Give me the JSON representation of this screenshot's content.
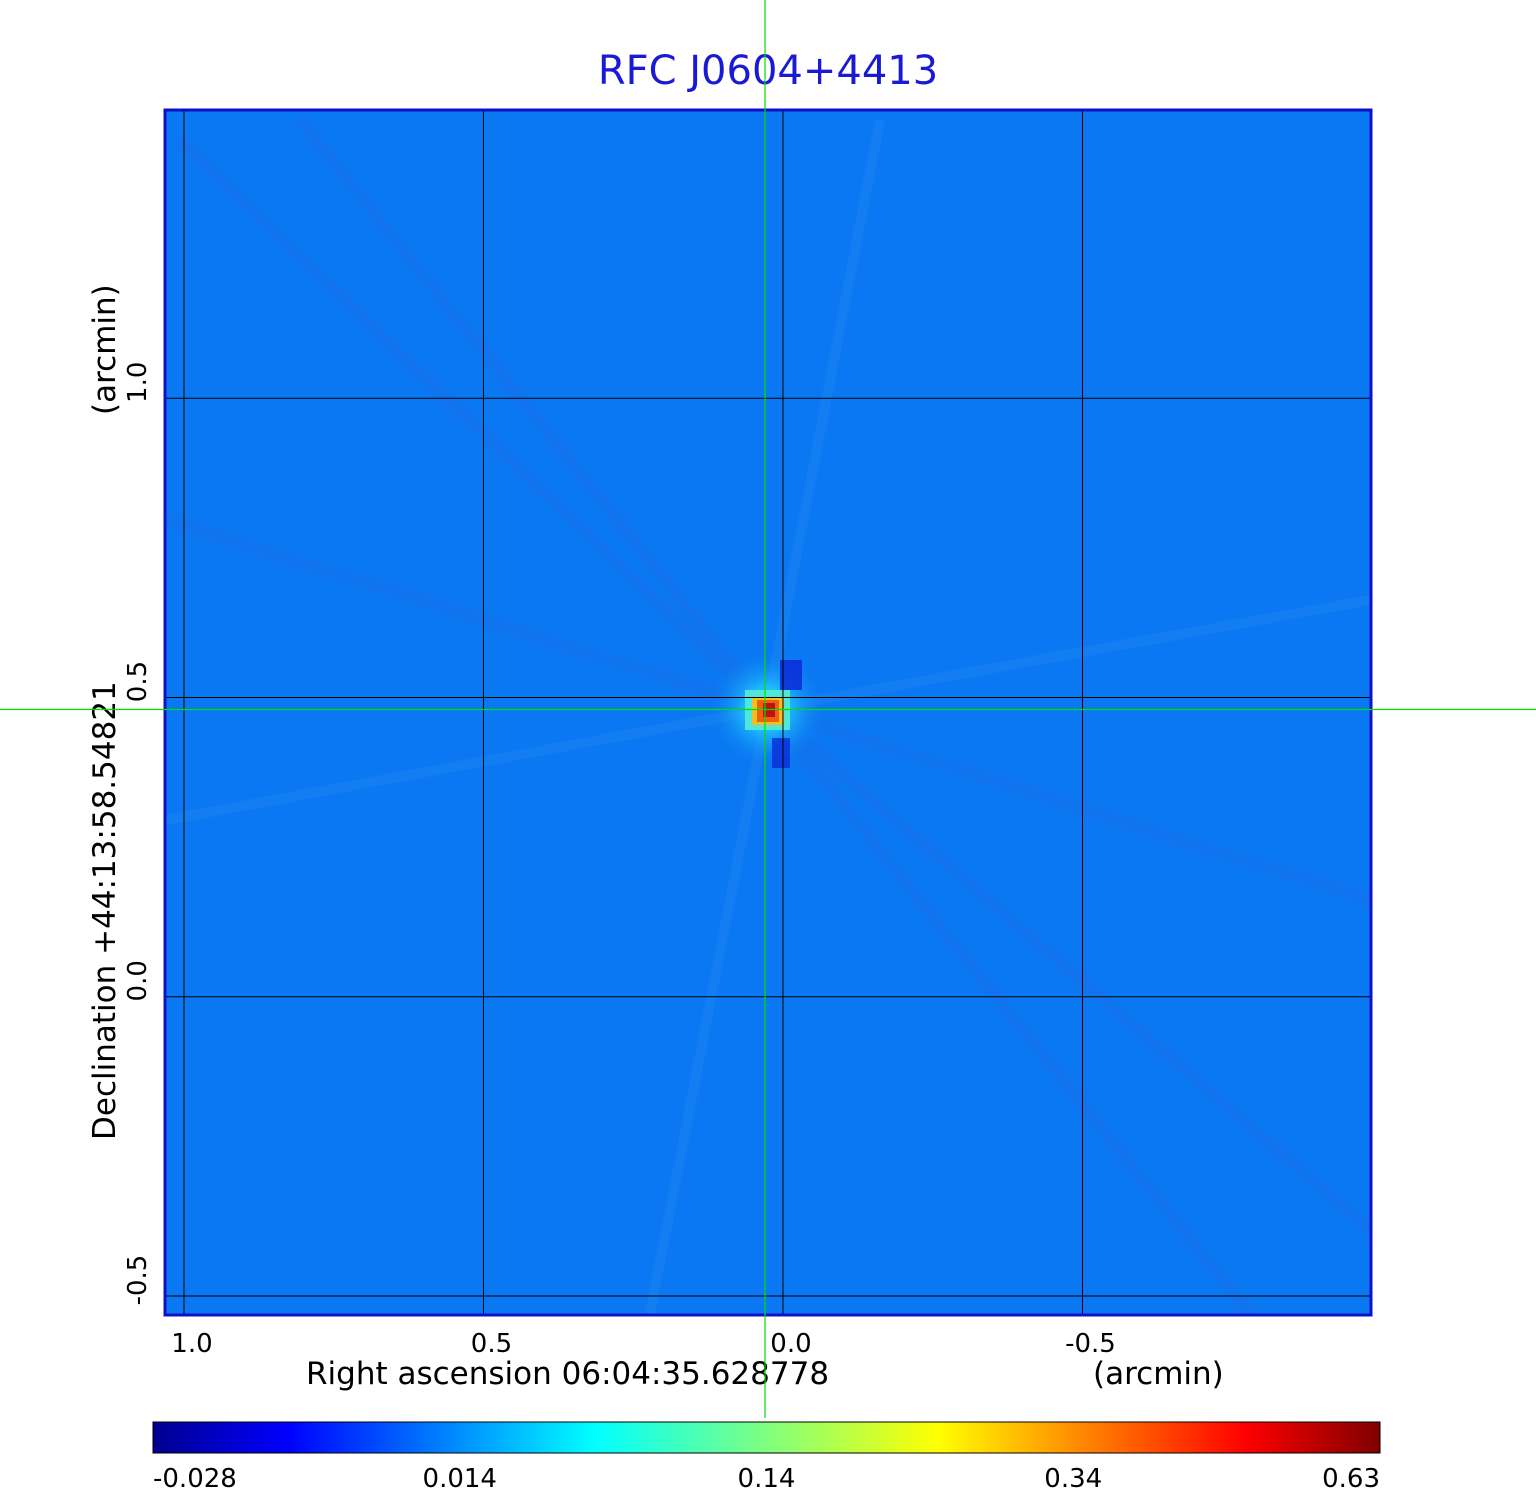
{
  "chart_data": {
    "type": "heatmap",
    "title": "RFC J0604+4413",
    "xlabel": "Right ascension  06:04:35.628778",
    "xunit": "(arcmin)",
    "ylabel": "Declination  +44:13:58.54821",
    "yunit": "(arcmin)",
    "x_ticks": [
      1.0,
      0.5,
      0.0,
      -0.5
    ],
    "x_tick_labels": [
      "1.0",
      "0.5",
      "0.0",
      "-0.5"
    ],
    "y_ticks": [
      1.0,
      0.5,
      0.0,
      -0.5
    ],
    "y_tick_labels": [
      "1.0",
      "0.5",
      "0.0",
      "-0.5"
    ],
    "xlim": [
      1.03,
      -0.98
    ],
    "ylim": [
      -0.53,
      1.48
    ],
    "grid": true,
    "crosshair": {
      "x": 0.03,
      "y": 0.48,
      "color": "#00e000"
    },
    "source_peak": {
      "x": 0.03,
      "y": 0.48,
      "value": 0.63
    },
    "colorbar": {
      "colormap": "jet",
      "tick_labels": [
        "-0.028",
        "0.014",
        "0.14",
        "0.34",
        "0.63"
      ],
      "ticks": [
        -0.028,
        0.014,
        0.14,
        0.34,
        0.63
      ]
    },
    "colors": {
      "frame": "#1010c8",
      "background_field": "#0a78f2",
      "title": "#1a1ad6"
    }
  }
}
